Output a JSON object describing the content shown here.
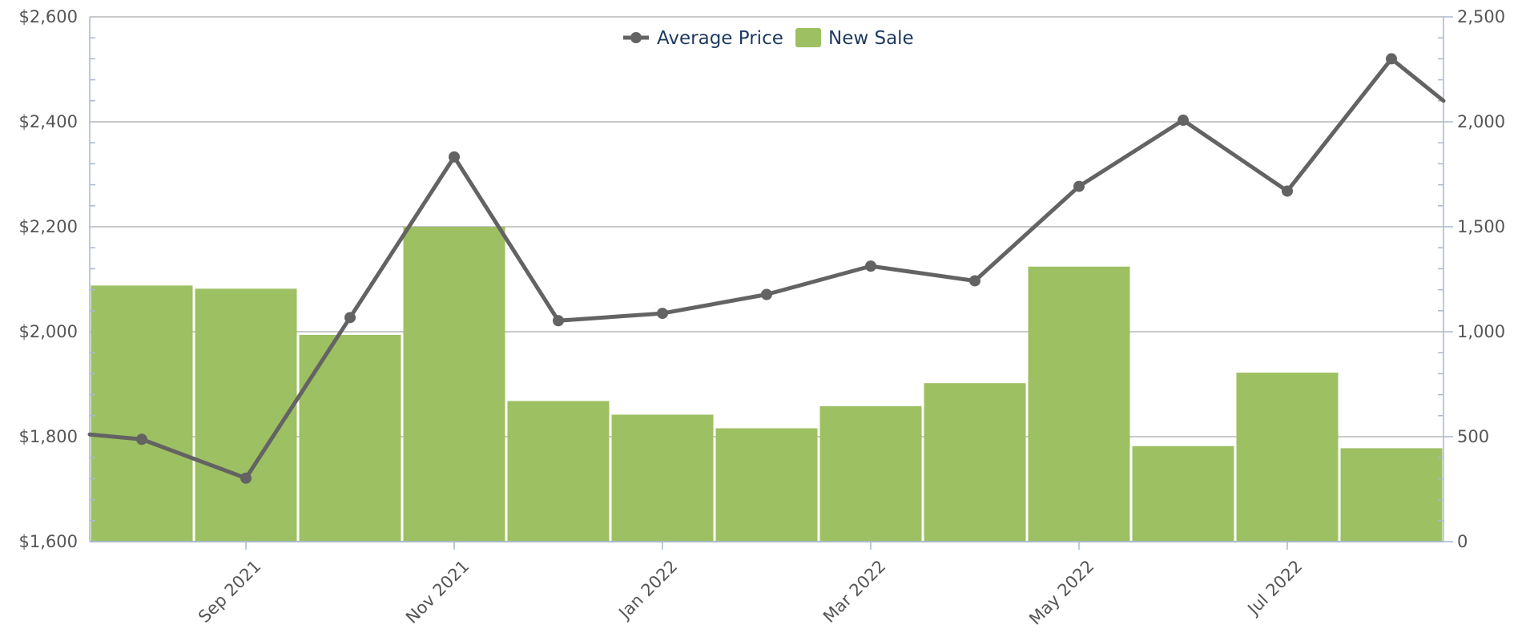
{
  "chart_data": {
    "type": "bar",
    "title": "",
    "categories": [
      "Aug 2021",
      "Sep 2021",
      "Oct 2021",
      "Nov 2021",
      "Dec 2021",
      "Jan 2022",
      "Feb 2022",
      "Mar 2022",
      "Apr 2022",
      "May 2022",
      "Jun 2022",
      "Jul 2022",
      "Aug 2022"
    ],
    "x_tick_labels": [
      "Sep 2021",
      "Nov 2021",
      "Jan 2022",
      "Mar 2022",
      "May 2022",
      "Jul 2022"
    ],
    "series": [
      {
        "name": "New Sale",
        "type": "bar",
        "axis": "right",
        "color": "#9dc063",
        "values": [
          1220,
          1205,
          985,
          1500,
          670,
          605,
          540,
          645,
          755,
          1310,
          455,
          805,
          445
        ]
      },
      {
        "name": "Average Price",
        "type": "line",
        "axis": "left",
        "color": "#636363",
        "values": [
          1795,
          1721,
          2027,
          2333,
          2021,
          2035,
          2071,
          2125,
          2097,
          2277,
          2403,
          2268,
          2520
        ],
        "tail_end_value": 2440
      }
    ],
    "y_left": {
      "label": "",
      "ylim": [
        1600,
        2600
      ],
      "tick_labels": [
        "$1,600",
        "$1,800",
        "$2,000",
        "$2,200",
        "$2,400",
        "$2,600"
      ]
    },
    "y_right": {
      "label": "",
      "ylim": [
        0,
        2500
      ],
      "tick_labels": [
        "0",
        "500",
        "1,000",
        "1,500",
        "2,000",
        "2,500"
      ]
    },
    "legend": {
      "position": "top-center",
      "items": [
        "Average Price",
        "New Sale"
      ]
    },
    "grid": true
  }
}
